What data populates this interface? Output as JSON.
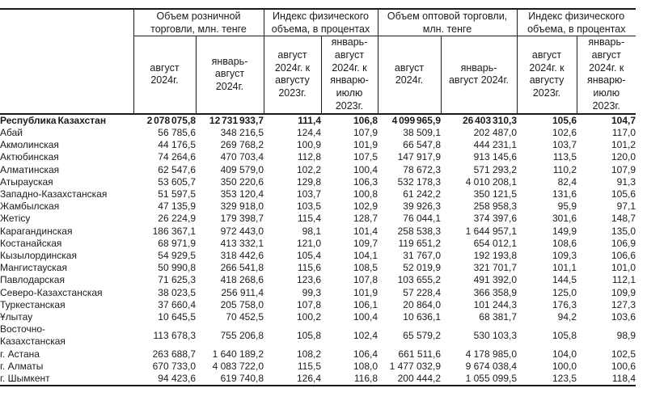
{
  "table": {
    "column_groups": [
      {
        "label": "Объем розничной\nторговли, млн. тенге",
        "sub_columns": [
          "август\n2024г.",
          "январь-\nавгуст\n2024г."
        ]
      },
      {
        "label": "Индекс физического\nобъема, в процентах",
        "sub_columns": [
          "август\n2024г. к\nавгусту\n2023г.",
          "январь-\nавгуст\n2024г. к\nянварю-\nиюлю\n2023г."
        ]
      },
      {
        "label": "Объем оптовой торговли,\nмлн. тенге",
        "sub_columns": [
          "август\n2024г.",
          "январь-\nавгуст 2024г."
        ]
      },
      {
        "label": "Индекс физического\nобъема, в процентах",
        "sub_columns": [
          "август\n2024г. к\nавгусту\n2023г.",
          "январь-\nавгуст\n2024г. к\nянварю-\nиюлю\n2023г."
        ]
      }
    ],
    "rows": [
      {
        "region": "Республика Казахстан",
        "bold": true,
        "values": [
          "2 078 075,8",
          "12 731 933,7",
          "111,4",
          "106,8",
          "4 099 965,9",
          "26 403 310,3",
          "105,6",
          "104,7"
        ]
      },
      {
        "region": "Абай",
        "values": [
          "56 785,6",
          "348 216,5",
          "124,4",
          "107,9",
          "38 509,1",
          "202 487,0",
          "102,6",
          "117,0"
        ]
      },
      {
        "region": "Акмолинская",
        "values": [
          "44 176,5",
          "269 768,2",
          "100,9",
          "101,9",
          "66 547,8",
          "444 231,1",
          "103,7",
          "101,2"
        ]
      },
      {
        "region": "Актюбинская",
        "values": [
          "74 264,6",
          "470 703,4",
          "112,8",
          "107,5",
          "147 917,9",
          "913 145,6",
          "113,5",
          "120,0"
        ]
      },
      {
        "region": "Алматинская",
        "values": [
          "62 547,6",
          "409 579,0",
          "102,2",
          "100,4",
          "78 672,3",
          "571 293,2",
          "110,2",
          "107,9"
        ]
      },
      {
        "region": "Атырауская",
        "values": [
          "53 605,7",
          "350 220,6",
          "129,8",
          "106,3",
          "532 178,3",
          "4 010 208,1",
          "82,4",
          "91,3"
        ]
      },
      {
        "region": "Западно-Казахстанская",
        "values": [
          "51 597,5",
          "353 120,4",
          "103,7",
          "100,8",
          "61 242,2",
          "350 121,5",
          "131,6",
          "105,6"
        ]
      },
      {
        "region": "Жамбылская",
        "values": [
          "47 135,9",
          "329 918,0",
          "103,5",
          "102,9",
          "39 926,3",
          "258 958,3",
          "95,9",
          "97,1"
        ]
      },
      {
        "region": "Жетісу",
        "values": [
          "26 224,9",
          "179 398,7",
          "115,4",
          "128,7",
          "76 044,1",
          "374 397,6",
          "301,6",
          "148,7"
        ]
      },
      {
        "region": "Карагандинская",
        "values": [
          "186 367,1",
          "972 443,0",
          "98,1",
          "101,4",
          "258 538,3",
          "1 644 957,1",
          "149,9",
          "135,0"
        ]
      },
      {
        "region": "Костанайская",
        "values": [
          "68 971,9",
          "413 332,1",
          "121,0",
          "109,7",
          "119 651,2",
          "654 012,1",
          "108,6",
          "106,9"
        ]
      },
      {
        "region": "Кызылординская",
        "values": [
          "54 929,5",
          "318 442,6",
          "105,4",
          "104,1",
          "31 767,0",
          "192 193,8",
          "109,3",
          "106,6"
        ]
      },
      {
        "region": "Мангистауская",
        "values": [
          "50 990,8",
          "266 541,8",
          "115,6",
          "108,5",
          "52 019,9",
          "321 701,7",
          "101,1",
          "101,0"
        ]
      },
      {
        "region": "Павлодарская",
        "values": [
          "71 625,3",
          "418 268,6",
          "123,6",
          "107,8",
          "103 655,2",
          "491 392,0",
          "144,5",
          "112,1"
        ]
      },
      {
        "region": "Северо-Казахстанская",
        "values": [
          "38 023,5",
          "256 911,4",
          "99,3",
          "101,9",
          "57 228,4",
          "366 358,9",
          "125,0",
          "109,9"
        ]
      },
      {
        "region": "Туркестанская",
        "values": [
          "37 660,4",
          "205 758,0",
          "107,8",
          "106,1",
          "20 864,0",
          "101 244,3",
          "176,3",
          "127,3"
        ]
      },
      {
        "region": "Ұлытау",
        "values": [
          "10 645,5",
          "70 452,5",
          "100,2",
          "100,4",
          "10 636,1",
          "68 381,7",
          "94,2",
          "103,6"
        ]
      },
      {
        "region": "Восточно-\nКазахстанская",
        "values": [
          "113 678,3",
          "755 206,8",
          "105,8",
          "102,4",
          "65 579,2",
          "530 103,3",
          "105,8",
          "98,9"
        ]
      },
      {
        "region": "г. Астана",
        "values": [
          "263 688,7",
          "1 640 189,2",
          "108,2",
          "106,4",
          "661 511,6",
          "4 178 985,0",
          "104,0",
          "102,5"
        ]
      },
      {
        "region": "г. Алматы",
        "values": [
          "670 733,0",
          "4 083 722,0",
          "115,5",
          "108,0",
          "1 477 032,9",
          "9 674 038,4",
          "100,0",
          "100,6"
        ]
      },
      {
        "region": "г. Шымкент",
        "values": [
          "94 423,6",
          "619 740,8",
          "126,4",
          "116,8",
          "200 444,2",
          "1 055 099,5",
          "123,5",
          "118,4"
        ]
      }
    ]
  }
}
